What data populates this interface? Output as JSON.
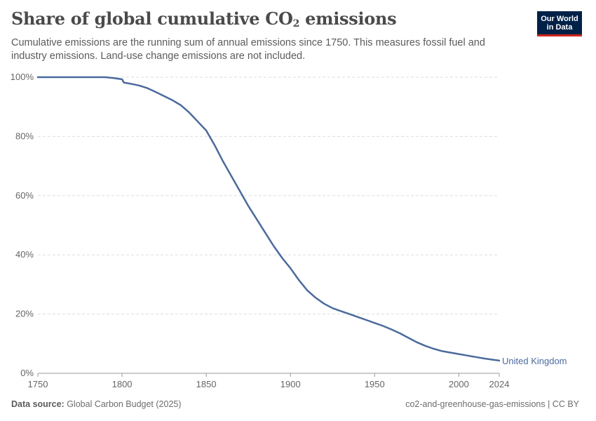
{
  "header": {
    "title_main": "Share of global cumulative CO",
    "title_sub": "2",
    "title_end": " emissions",
    "subtitle": "Cumulative emissions are the running sum of annual emissions since 1750. This measures fossil fuel and industry emissions. Land-use change emissions are not included."
  },
  "logo": {
    "line1": "Our World",
    "line2": "in Data"
  },
  "footer": {
    "source_label": "Data source:",
    "source_value": " Global Carbon Budget (2025)",
    "right_text": "co2-and-greenhouse-gas-emissions | CC BY"
  },
  "colors": {
    "series": "#4c6a9c",
    "grid": "#dddddd",
    "axis": "#999999",
    "text": "#666666",
    "brand": "#002147",
    "brand_accent": "#ce261e"
  },
  "chart_data": {
    "type": "line",
    "title": "Share of global cumulative CO2 emissions",
    "xlim": [
      1750,
      2024
    ],
    "ylim": [
      0,
      100
    ],
    "x_ticks": [
      1750,
      1800,
      1850,
      1900,
      1950,
      2000,
      2024
    ],
    "y_ticks": [
      0,
      20,
      40,
      60,
      80,
      100
    ],
    "y_tick_labels": [
      "0%",
      "20%",
      "40%",
      "60%",
      "80%",
      "100%"
    ],
    "grid": "horizontal dashed",
    "series": [
      {
        "name": "United Kingdom",
        "x": [
          1750,
          1790,
          1795,
          1800,
          1801,
          1805,
          1810,
          1815,
          1820,
          1825,
          1830,
          1835,
          1840,
          1845,
          1850,
          1855,
          1860,
          1865,
          1870,
          1875,
          1880,
          1885,
          1890,
          1895,
          1900,
          1905,
          1910,
          1915,
          1920,
          1925,
          1930,
          1935,
          1940,
          1945,
          1950,
          1955,
          1960,
          1965,
          1970,
          1975,
          1980,
          1985,
          1990,
          1995,
          2000,
          2005,
          2010,
          2015,
          2020,
          2024
        ],
        "y": [
          100,
          100,
          99.7,
          99.3,
          98.2,
          97.8,
          97.2,
          96.3,
          95.0,
          93.6,
          92.2,
          90.5,
          88.0,
          85.0,
          82.0,
          77.0,
          71.5,
          66.5,
          61.5,
          56.5,
          52.0,
          47.5,
          43.0,
          39.0,
          35.5,
          31.5,
          28.0,
          25.5,
          23.5,
          22.0,
          21.0,
          20.0,
          19.0,
          18.0,
          17.0,
          16.0,
          14.8,
          13.5,
          12.0,
          10.5,
          9.3,
          8.3,
          7.5,
          7.0,
          6.5,
          6.0,
          5.5,
          5.0,
          4.6,
          4.3
        ]
      }
    ]
  }
}
